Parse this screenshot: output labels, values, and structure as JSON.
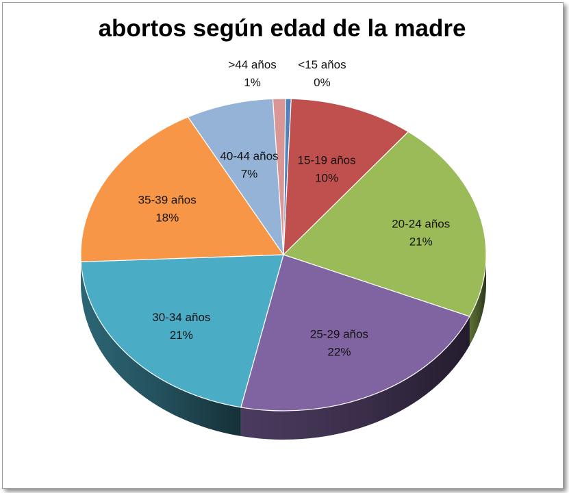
{
  "chart_data": {
    "type": "pie",
    "title": "abortos según edad de la madre",
    "slices": [
      {
        "label": "<15 años",
        "value": 0,
        "percent_label": "0%",
        "color": "#4F81BD"
      },
      {
        "label": "15-19 años",
        "value": 10,
        "percent_label": "10%",
        "color": "#C0504D"
      },
      {
        "label": "20-24 años",
        "value": 21,
        "percent_label": "21%",
        "color": "#9BBB59"
      },
      {
        "label": "25-29 años",
        "value": 22,
        "percent_label": "22%",
        "color": "#8064A2"
      },
      {
        "label": "30-34 años",
        "value": 21,
        "percent_label": "21%",
        "color": "#4BACC6"
      },
      {
        "label": "35-39 años",
        "value": 18,
        "percent_label": "18%",
        "color": "#F79646"
      },
      {
        "label": "40-44 años",
        "value": 7,
        "percent_label": "7%",
        "color": "#95B3D7"
      },
      {
        "label": ">44 años",
        "value": 1,
        "percent_label": "1%",
        "color": "#D99694"
      }
    ],
    "three_d": true,
    "legend": "none"
  }
}
